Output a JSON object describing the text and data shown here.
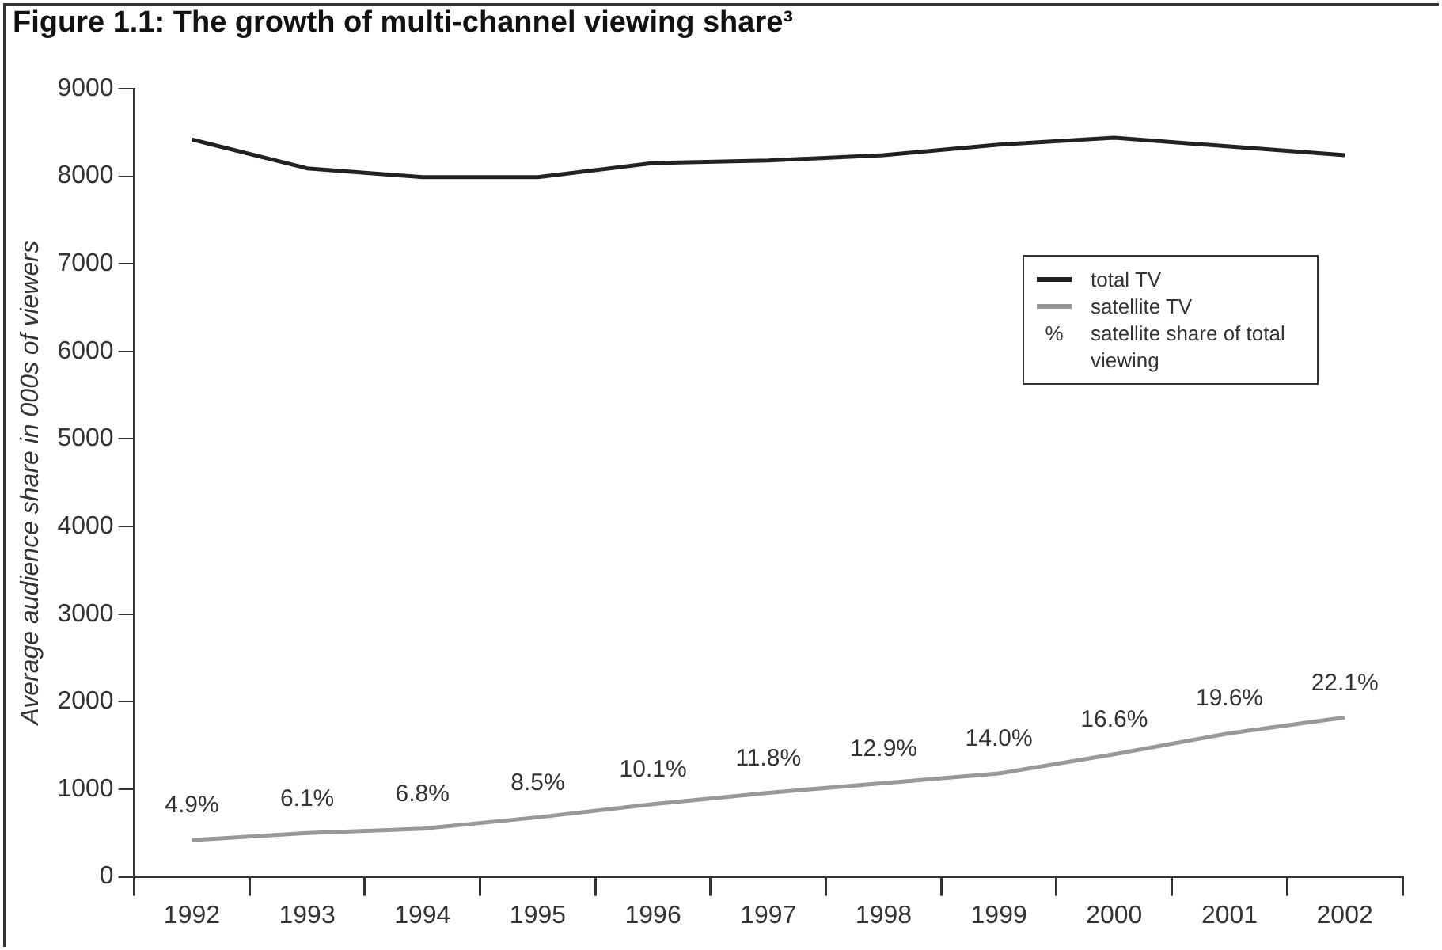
{
  "chart_data": {
    "type": "line",
    "title": "Figure 1.1: The growth of multi-channel viewing share³",
    "ylabel": "Average audience share in 000s of viewers",
    "categories": [
      "1992",
      "1993",
      "1994",
      "1995",
      "1996",
      "1997",
      "1998",
      "1999",
      "2000",
      "2001",
      "2002"
    ],
    "series": [
      {
        "name": "total TV",
        "color": "#222222",
        "values": [
          8420,
          8090,
          7990,
          7990,
          8150,
          8180,
          8240,
          8360,
          8440,
          8340,
          8240
        ]
      },
      {
        "name": "satellite TV",
        "color": "#999999",
        "values": [
          420,
          500,
          550,
          680,
          830,
          960,
          1070,
          1180,
          1400,
          1640,
          1820
        ]
      }
    ],
    "annotations": [
      "% satellite share of total viewing",
      {
        "text": "4.9%",
        "x": "1992",
        "y": 420
      },
      {
        "text": "6.1%",
        "x": "1993",
        "y": 500
      },
      {
        "text": "6.8%",
        "x": "1994",
        "y": 550
      },
      {
        "text": "8.5%",
        "x": "1995",
        "y": 680
      },
      {
        "text": "10.1%",
        "x": "1996",
        "y": 830
      },
      {
        "text": "11.8%",
        "x": "1997",
        "y": 960
      },
      {
        "text": "12.9%",
        "x": "1998",
        "y": 1070
      },
      {
        "text": "14.0%",
        "x": "1999",
        "y": 1180
      },
      {
        "text": "16.6%",
        "x": "2000",
        "y": 1400
      },
      {
        "text": "19.6%",
        "x": "2001",
        "y": 1640
      },
      {
        "text": "22.1%",
        "x": "2002",
        "y": 1820
      }
    ],
    "ylim": [
      0,
      9000
    ],
    "yticks": [
      0,
      1000,
      2000,
      3000,
      4000,
      5000,
      6000,
      7000,
      8000,
      9000
    ],
    "grid": false,
    "legend": "right",
    "marker": "none",
    "line_style": "solid"
  }
}
